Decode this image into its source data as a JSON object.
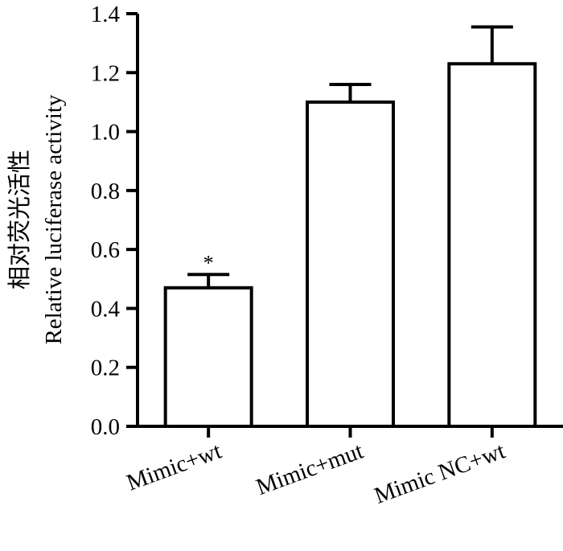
{
  "chart_data": {
    "type": "bar",
    "categories": [
      "Mimic+wt",
      "Mimic+mut",
      "Mimic NC+wt"
    ],
    "values": [
      0.47,
      1.1,
      1.23
    ],
    "error_upper": [
      0.515,
      1.16,
      1.355
    ],
    "annotations": [
      "*",
      "",
      ""
    ],
    "ylabel_cn": "相对荧光活性",
    "ylabel": "Relative luciferase activity",
    "xlabel": "",
    "ylim": [
      0,
      1.4
    ],
    "yticks": [
      "0.0",
      "0.2",
      "0.4",
      "0.6",
      "0.8",
      "1.0",
      "1.2",
      "1.4"
    ],
    "grid": false,
    "bar_fill": "#ffffff",
    "bar_stroke": "#000000"
  }
}
